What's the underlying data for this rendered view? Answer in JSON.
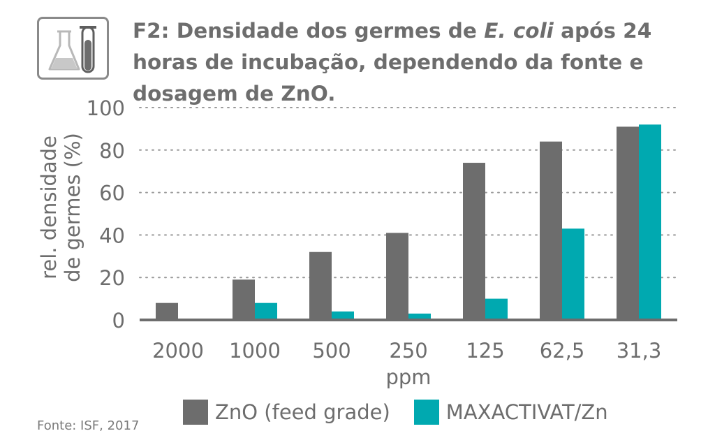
{
  "title": {
    "part1": "F2: Densidade dos germes de ",
    "italic": "E. coli",
    "part2": " após 24 horas de incubação, dependendo da fonte e dosagem de ZnO."
  },
  "icon": "lab-flask-test-tube-icon",
  "colors": {
    "zno": "#6d6d6d",
    "maxactivat": "#00a9b0",
    "grid": "#9a9a9a",
    "text": "#6d6d6d"
  },
  "chart_data": {
    "type": "bar",
    "categories": [
      "2000",
      "1000",
      "500",
      "250",
      "125",
      "62,5",
      "31,3"
    ],
    "series": [
      {
        "name": "ZnO (feed grade)",
        "values": [
          8,
          19,
          32,
          41,
          74,
          84,
          91
        ]
      },
      {
        "name": "MAXACTIVAT/Zn",
        "values": [
          0,
          8,
          4,
          3,
          10,
          43,
          92
        ]
      }
    ],
    "xlabel": "ppm",
    "ylabel_lines": [
      "rel. densidade",
      "de germes (%)"
    ],
    "ylim": [
      0,
      100
    ],
    "yticks": [
      "0",
      "20",
      "40",
      "60",
      "80",
      "100"
    ],
    "grid": true,
    "legend_position": "bottom"
  },
  "source": "Fonte: ISF, 2017"
}
